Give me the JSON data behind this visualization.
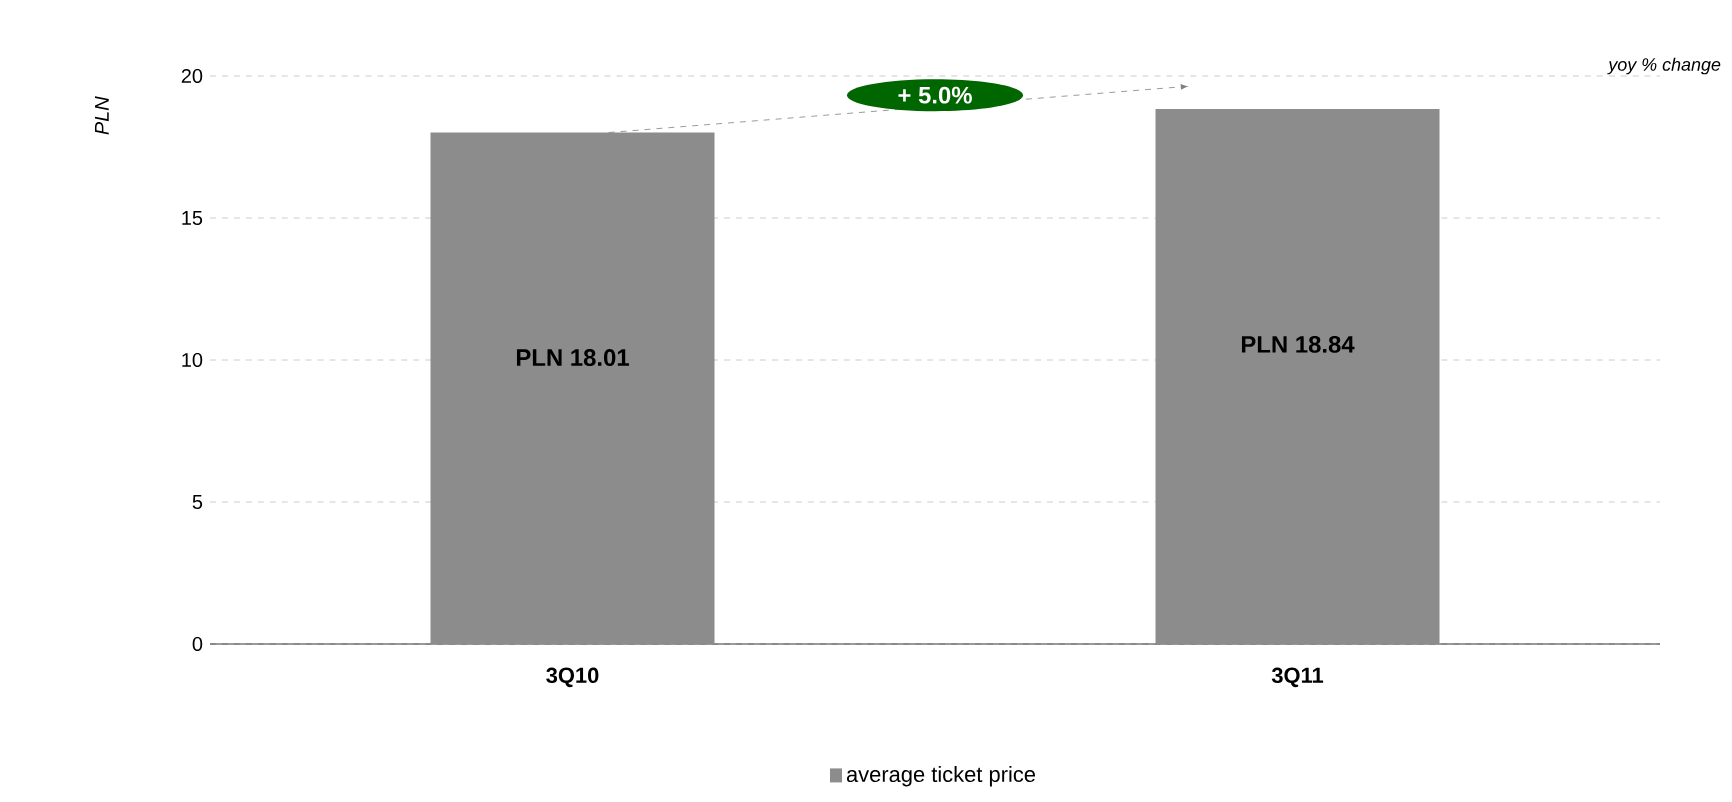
{
  "chart_data": {
    "type": "bar",
    "ylabel": "PLN",
    "categories": [
      "3Q10",
      "3Q11"
    ],
    "series": [
      {
        "name": "average ticket price",
        "color": "#8c8c8c",
        "values": [
          18.01,
          18.84
        ],
        "value_labels": [
          "PLN 18.01",
          "PLN 18.84"
        ]
      }
    ],
    "ylim": [
      0,
      20
    ],
    "yticks": [
      0,
      5,
      10,
      15,
      20
    ],
    "grid": "y",
    "legend": "bottom",
    "annotations": [
      "+ 5.0%",
      "yoy % change"
    ]
  }
}
